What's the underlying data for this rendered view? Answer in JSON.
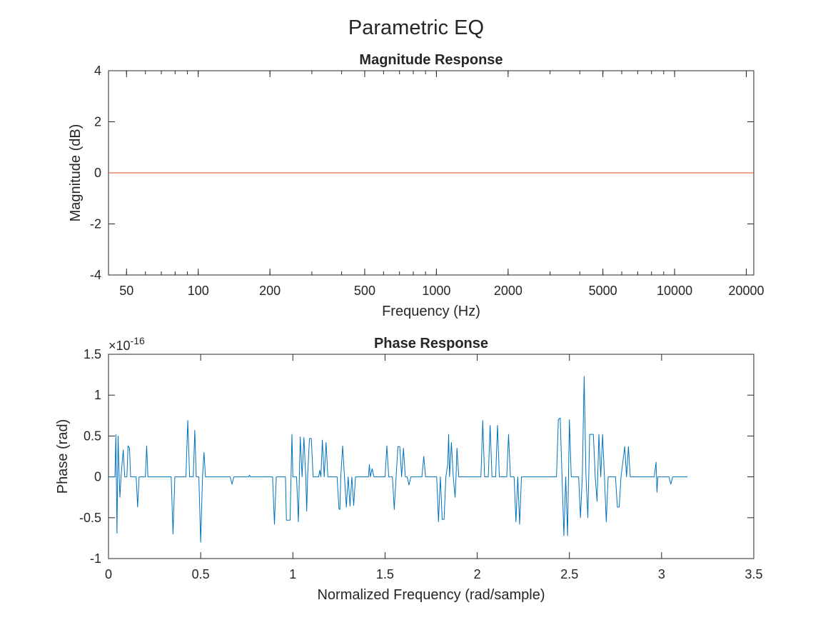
{
  "figure_title": "Parametric EQ",
  "chart_data": [
    {
      "type": "line",
      "title": "Magnitude Response",
      "xlabel": "Frequency (Hz)",
      "ylabel": "Magnitude (dB)",
      "xscale": "log",
      "xlim": [
        42,
        21500
      ],
      "ylim": [
        -4,
        4
      ],
      "grid": false,
      "xticks": [
        50,
        100,
        200,
        500,
        1000,
        2000,
        5000,
        10000,
        20000
      ],
      "xtick_labels": [
        "50",
        "100",
        "200",
        "500",
        "1000",
        "2000",
        "5000",
        "10000",
        "20000"
      ],
      "yticks": [
        -4,
        -2,
        0,
        2,
        4
      ],
      "ytick_labels": [
        "-4",
        "-2",
        "0",
        "2",
        "4"
      ],
      "series": [
        {
          "color": "#d95319",
          "x": [
            42,
            21500
          ],
          "y": [
            0,
            0
          ]
        }
      ]
    },
    {
      "type": "line",
      "title": "Phase Response",
      "xlabel": "Normalized Frequency (rad/sample)",
      "ylabel": "Phase (rad)",
      "xlim": [
        0,
        3.5
      ],
      "ylim": [
        -1,
        1.5
      ],
      "y_exponent_base": "×10",
      "y_exponent_power": "-16",
      "grid": false,
      "xticks": [
        0,
        0.5,
        1,
        1.5,
        2,
        2.5,
        3,
        3.5
      ],
      "xtick_labels": [
        "0",
        "0.5",
        "1",
        "1.5",
        "2",
        "2.5",
        "3",
        "3.5"
      ],
      "yticks": [
        -1,
        -0.5,
        0,
        0.5,
        1,
        1.5
      ],
      "ytick_labels": [
        "-1",
        "-0.5",
        "0",
        "0.5",
        "1",
        "1.5"
      ],
      "series": [
        {
          "color": "#0072bd",
          "points": [
            [
              0,
              0
            ],
            [
              0.035,
              0
            ],
            [
              0.04,
              0.52
            ],
            [
              0.046,
              -0.69
            ],
            [
              0.052,
              0.5
            ],
            [
              0.058,
              0
            ],
            [
              0.062,
              -0.25
            ],
            [
              0.068,
              0
            ],
            [
              0.08,
              0.33
            ],
            [
              0.088,
              0
            ],
            [
              0.1,
              0
            ],
            [
              0.106,
              0.38
            ],
            [
              0.114,
              0.35
            ],
            [
              0.12,
              0
            ],
            [
              0.15,
              0
            ],
            [
              0.158,
              -0.37
            ],
            [
              0.166,
              0
            ],
            [
              0.2,
              0
            ],
            [
              0.207,
              0.38
            ],
            [
              0.214,
              0
            ],
            [
              0.34,
              0
            ],
            [
              0.35,
              -0.7
            ],
            [
              0.36,
              0
            ],
            [
              0.42,
              0
            ],
            [
              0.43,
              0.69
            ],
            [
              0.44,
              0
            ],
            [
              0.46,
              0
            ],
            [
              0.468,
              0.57
            ],
            [
              0.476,
              0
            ],
            [
              0.49,
              0
            ],
            [
              0.5,
              -0.8
            ],
            [
              0.51,
              0
            ],
            [
              0.518,
              0.3
            ],
            [
              0.526,
              0
            ],
            [
              0.66,
              0
            ],
            [
              0.67,
              -0.09
            ],
            [
              0.68,
              0
            ],
            [
              0.76,
              0
            ],
            [
              0.765,
              0.02
            ],
            [
              0.77,
              0
            ],
            [
              0.89,
              0
            ],
            [
              0.9,
              -0.58
            ],
            [
              0.91,
              0
            ],
            [
              0.96,
              0
            ],
            [
              0.965,
              -0.53
            ],
            [
              0.97,
              -0.53
            ],
            [
              0.985,
              -0.53
            ],
            [
              0.995,
              0.52
            ],
            [
              1.0,
              0
            ],
            [
              1.02,
              0
            ],
            [
              1.03,
              -0.55
            ],
            [
              1.04,
              0.49
            ],
            [
              1.05,
              0
            ],
            [
              1.06,
              0.48
            ],
            [
              1.07,
              0
            ],
            [
              1.075,
              -0.42
            ],
            [
              1.08,
              0
            ],
            [
              1.09,
              0.47
            ],
            [
              1.1,
              0.47
            ],
            [
              1.11,
              0
            ],
            [
              1.14,
              0
            ],
            [
              1.146,
              0.08
            ],
            [
              1.152,
              0
            ],
            [
              1.16,
              0.45
            ],
            [
              1.17,
              0
            ],
            [
              1.18,
              0.42
            ],
            [
              1.19,
              0
            ],
            [
              1.24,
              0
            ],
            [
              1.25,
              -0.39
            ],
            [
              1.255,
              -0.4
            ],
            [
              1.26,
              0
            ],
            [
              1.27,
              0.38
            ],
            [
              1.28,
              0
            ],
            [
              1.29,
              -0.37
            ],
            [
              1.3,
              0
            ],
            [
              1.31,
              -0.36
            ],
            [
              1.32,
              0
            ],
            [
              1.33,
              -0.35
            ],
            [
              1.34,
              0
            ],
            [
              1.41,
              0
            ],
            [
              1.415,
              0.15
            ],
            [
              1.42,
              0
            ],
            [
              1.43,
              0.1
            ],
            [
              1.44,
              0
            ],
            [
              1.5,
              0
            ],
            [
              1.51,
              0.38
            ],
            [
              1.52,
              0
            ],
            [
              1.54,
              0
            ],
            [
              1.55,
              -0.4
            ],
            [
              1.56,
              0
            ],
            [
              1.57,
              0.37
            ],
            [
              1.58,
              0.37
            ],
            [
              1.59,
              0
            ],
            [
              1.6,
              0.35
            ],
            [
              1.61,
              0
            ],
            [
              1.62,
              0
            ],
            [
              1.63,
              -0.1
            ],
            [
              1.64,
              0
            ],
            [
              1.7,
              0
            ],
            [
              1.71,
              0.25
            ],
            [
              1.72,
              0
            ],
            [
              1.78,
              0
            ],
            [
              1.79,
              -0.55
            ],
            [
              1.8,
              0
            ],
            [
              1.81,
              -0.52
            ],
            [
              1.82,
              -0.52
            ],
            [
              1.83,
              0
            ],
            [
              1.84,
              0.15
            ],
            [
              1.845,
              0.52
            ],
            [
              1.85,
              0
            ],
            [
              1.86,
              0.42
            ],
            [
              1.87,
              0
            ],
            [
              1.88,
              -0.25
            ],
            [
              1.885,
              0
            ],
            [
              1.89,
              0.35
            ],
            [
              1.9,
              0
            ],
            [
              2.02,
              0
            ],
            [
              2.03,
              0.69
            ],
            [
              2.04,
              0
            ],
            [
              2.06,
              0
            ],
            [
              2.07,
              0.63
            ],
            [
              2.08,
              0
            ],
            [
              2.1,
              0
            ],
            [
              2.11,
              0.63
            ],
            [
              2.12,
              0
            ],
            [
              2.16,
              0
            ],
            [
              2.17,
              0.52
            ],
            [
              2.18,
              0
            ],
            [
              2.2,
              0
            ],
            [
              2.21,
              -0.55
            ],
            [
              2.22,
              0
            ],
            [
              2.23,
              -0.58
            ],
            [
              2.24,
              0
            ],
            [
              2.43,
              0
            ],
            [
              2.44,
              0.7
            ],
            [
              2.45,
              0.72
            ],
            [
              2.46,
              0
            ],
            [
              2.47,
              -0.72
            ],
            [
              2.48,
              0
            ],
            [
              2.49,
              -0.72
            ],
            [
              2.5,
              0.7
            ],
            [
              2.51,
              0
            ],
            [
              2.55,
              0
            ],
            [
              2.56,
              -0.5
            ],
            [
              2.57,
              0
            ],
            [
              2.58,
              1.23
            ],
            [
              2.59,
              0
            ],
            [
              2.6,
              -0.5
            ],
            [
              2.61,
              0.52
            ],
            [
              2.62,
              0.52
            ],
            [
              2.63,
              0.52
            ],
            [
              2.64,
              0
            ],
            [
              2.65,
              -0.3
            ],
            [
              2.66,
              0.52
            ],
            [
              2.67,
              0
            ],
            [
              2.68,
              0.52
            ],
            [
              2.69,
              0
            ],
            [
              2.7,
              -0.55
            ],
            [
              2.71,
              0
            ],
            [
              2.75,
              0
            ],
            [
              2.76,
              -0.37
            ],
            [
              2.77,
              -0.37
            ],
            [
              2.78,
              0
            ],
            [
              2.8,
              0.37
            ],
            [
              2.81,
              0
            ],
            [
              2.82,
              0.37
            ],
            [
              2.83,
              0
            ],
            [
              2.96,
              0
            ],
            [
              2.97,
              0.18
            ],
            [
              2.975,
              -0.19
            ],
            [
              2.98,
              0
            ],
            [
              3.04,
              0
            ],
            [
              3.05,
              -0.09
            ],
            [
              3.06,
              0
            ],
            [
              3.14,
              0
            ]
          ]
        }
      ]
    }
  ]
}
